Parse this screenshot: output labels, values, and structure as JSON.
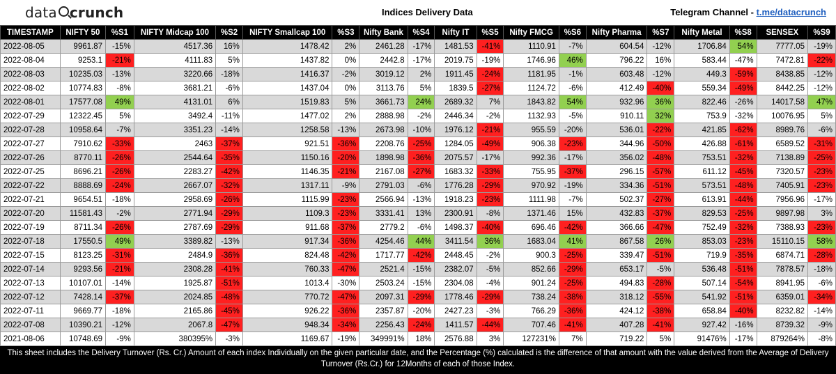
{
  "header": {
    "logo_left": "data",
    "logo_right": "crunch",
    "title": "Indices Delivery Data",
    "telegram_label": "Telegram Channel - ",
    "telegram_link": "t.me/datacrunch"
  },
  "columns": [
    "TIMESTAMP",
    "NIFTY 50",
    "%S1",
    "NIFTY Midcap 100",
    "%S2",
    "NIFTY Smallcap 100",
    "%S3",
    "Nifty Bank",
    "%S4",
    "Nifty IT",
    "%S5",
    "Nifty FMCG",
    "%S6",
    "Nifty Pharma",
    "%S7",
    "Nifty Metal",
    "%S8",
    "SENSEX",
    "%S9"
  ],
  "rows": [
    [
      "2022-08-05",
      "9961.87",
      "-15%",
      "4517.36",
      "16%",
      "1478.42",
      "2%",
      "2461.28",
      "-17%",
      "1481.53",
      "-41%",
      "1110.91",
      "-7%",
      "604.54",
      "-12%",
      "1706.84",
      "54%",
      "7777.05",
      "-19%"
    ],
    [
      "2022-08-04",
      "9253.1",
      "-21%",
      "4111.83",
      "5%",
      "1437.82",
      "0%",
      "2442.8",
      "-17%",
      "2019.75",
      "-19%",
      "1746.96",
      "46%",
      "796.22",
      "16%",
      "583.44",
      "-47%",
      "7472.81",
      "-22%"
    ],
    [
      "2022-08-03",
      "10235.03",
      "-13%",
      "3220.66",
      "-18%",
      "1416.37",
      "-2%",
      "3019.12",
      "2%",
      "1911.45",
      "-24%",
      "1181.95",
      "-1%",
      "603.48",
      "-12%",
      "449.3",
      "-59%",
      "8438.85",
      "-12%"
    ],
    [
      "2022-08-02",
      "10774.83",
      "-8%",
      "3681.21",
      "-6%",
      "1437.04",
      "0%",
      "3113.76",
      "5%",
      "1839.5",
      "-27%",
      "1124.72",
      "-6%",
      "412.49",
      "-40%",
      "559.34",
      "-49%",
      "8442.25",
      "-12%"
    ],
    [
      "2022-08-01",
      "17577.08",
      "49%",
      "4131.01",
      "6%",
      "1519.83",
      "5%",
      "3661.73",
      "24%",
      "2689.32",
      "7%",
      "1843.82",
      "54%",
      "932.96",
      "36%",
      "822.46",
      "-26%",
      "14017.58",
      "47%"
    ],
    [
      "2022-07-29",
      "12322.45",
      "5%",
      "3492.4",
      "-11%",
      "1477.02",
      "2%",
      "2888.98",
      "-2%",
      "2446.34",
      "-2%",
      "1132.93",
      "-5%",
      "910.11",
      "32%",
      "753.9",
      "-32%",
      "10076.95",
      "5%"
    ],
    [
      "2022-07-28",
      "10958.64",
      "-7%",
      "3351.23",
      "-14%",
      "1258.58",
      "-13%",
      "2673.98",
      "-10%",
      "1976.12",
      "-21%",
      "955.59",
      "-20%",
      "536.01",
      "-22%",
      "421.85",
      "-62%",
      "8989.76",
      "-6%"
    ],
    [
      "2022-07-27",
      "7910.62",
      "-33%",
      "2463",
      "-37%",
      "921.51",
      "-36%",
      "2208.76",
      "-25%",
      "1284.05",
      "-49%",
      "906.38",
      "-23%",
      "344.96",
      "-50%",
      "426.88",
      "-61%",
      "6589.52",
      "-31%"
    ],
    [
      "2022-07-26",
      "8770.11",
      "-26%",
      "2544.64",
      "-35%",
      "1150.16",
      "-20%",
      "1898.98",
      "-36%",
      "2075.57",
      "-17%",
      "992.36",
      "-17%",
      "356.02",
      "-48%",
      "753.51",
      "-32%",
      "7138.89",
      "-25%"
    ],
    [
      "2022-07-25",
      "8696.21",
      "-26%",
      "2283.27",
      "-42%",
      "1146.35",
      "-21%",
      "2167.08",
      "-27%",
      "1683.32",
      "-33%",
      "755.95",
      "-37%",
      "296.15",
      "-57%",
      "611.12",
      "-45%",
      "7320.57",
      "-23%"
    ],
    [
      "2022-07-22",
      "8888.69",
      "-24%",
      "2667.07",
      "-32%",
      "1317.11",
      "-9%",
      "2791.03",
      "-6%",
      "1776.28",
      "-29%",
      "970.92",
      "-19%",
      "334.36",
      "-51%",
      "573.51",
      "-48%",
      "7405.91",
      "-23%"
    ],
    [
      "2022-07-21",
      "9654.51",
      "-18%",
      "2958.69",
      "-26%",
      "1115.99",
      "-23%",
      "2566.94",
      "-13%",
      "1918.23",
      "-23%",
      "1111.98",
      "-7%",
      "502.37",
      "-27%",
      "613.91",
      "-44%",
      "7956.96",
      "-17%"
    ],
    [
      "2022-07-20",
      "11581.43",
      "-2%",
      "2771.94",
      "-29%",
      "1109.3",
      "-23%",
      "3331.41",
      "13%",
      "2300.91",
      "-8%",
      "1371.46",
      "15%",
      "432.83",
      "-37%",
      "829.53",
      "-25%",
      "9897.98",
      "3%"
    ],
    [
      "2022-07-19",
      "8711.34",
      "-26%",
      "2787.69",
      "-29%",
      "911.68",
      "-37%",
      "2779.2",
      "-6%",
      "1498.37",
      "-40%",
      "696.46",
      "-42%",
      "366.66",
      "-47%",
      "752.49",
      "-32%",
      "7388.93",
      "-23%"
    ],
    [
      "2022-07-18",
      "17550.5",
      "49%",
      "3389.82",
      "-13%",
      "917.34",
      "-36%",
      "4254.46",
      "44%",
      "3411.54",
      "36%",
      "1683.04",
      "41%",
      "867.58",
      "26%",
      "853.03",
      "-23%",
      "15110.15",
      "58%"
    ],
    [
      "2022-07-15",
      "8123.25",
      "-31%",
      "2484.9",
      "-36%",
      "824.48",
      "-42%",
      "1717.77",
      "-42%",
      "2448.45",
      "-2%",
      "900.3",
      "-25%",
      "339.47",
      "-51%",
      "719.9",
      "-35%",
      "6874.71",
      "-28%"
    ],
    [
      "2022-07-14",
      "9293.56",
      "-21%",
      "2308.28",
      "-41%",
      "760.33",
      "-47%",
      "2521.4",
      "-15%",
      "2382.07",
      "-5%",
      "852.66",
      "-29%",
      "653.17",
      "-5%",
      "536.48",
      "-51%",
      "7878.57",
      "-18%"
    ],
    [
      "2022-07-13",
      "10107.01",
      "-14%",
      "1925.87",
      "-51%",
      "1013.4",
      "-30%",
      "2503.24",
      "-15%",
      "2304.08",
      "-4%",
      "901.24",
      "-25%",
      "494.83",
      "-28%",
      "507.14",
      "-54%",
      "8941.95",
      "-6%"
    ],
    [
      "2022-07-12",
      "7428.14",
      "-37%",
      "2024.85",
      "-48%",
      "770.72",
      "-47%",
      "2097.31",
      "-29%",
      "1778.46",
      "-29%",
      "738.24",
      "-38%",
      "318.12",
      "-55%",
      "541.92",
      "-51%",
      "6359.01",
      "-34%"
    ],
    [
      "2022-07-11",
      "9669.77",
      "-18%",
      "2165.86",
      "-45%",
      "926.22",
      "-36%",
      "2357.87",
      "-20%",
      "2427.23",
      "-3%",
      "766.29",
      "-36%",
      "424.12",
      "-38%",
      "658.84",
      "-40%",
      "8232.82",
      "-14%"
    ],
    [
      "2022-07-08",
      "10390.21",
      "-12%",
      "2067.8",
      "-47%",
      "948.34",
      "-34%",
      "2256.43",
      "-24%",
      "1411.57",
      "-44%",
      "707.46",
      "-41%",
      "407.28",
      "-41%",
      "927.42",
      "-16%",
      "8739.32",
      "-9%"
    ],
    [
      "2021-08-06",
      "10748.69",
      "-9%",
      "380395%",
      "-3%",
      "1169.67",
      "-19%",
      "349991%",
      "18%",
      "2576.88",
      "3%",
      "127231%",
      "7%",
      "719.22",
      "5%",
      "91476%",
      "-17%",
      "879264%",
      "-8%"
    ]
  ],
  "highlights": {
    "red": [
      [
        1,
        2
      ],
      [
        0,
        10
      ],
      [
        1,
        18
      ],
      [
        2,
        10
      ],
      [
        2,
        16
      ],
      [
        3,
        10
      ],
      [
        3,
        14
      ],
      [
        3,
        16
      ],
      [
        6,
        10
      ],
      [
        6,
        14
      ],
      [
        6,
        16
      ],
      [
        7,
        2
      ],
      [
        7,
        4
      ],
      [
        7,
        6
      ],
      [
        7,
        8
      ],
      [
        7,
        10
      ],
      [
        7,
        12
      ],
      [
        7,
        14
      ],
      [
        7,
        16
      ],
      [
        7,
        18
      ],
      [
        8,
        2
      ],
      [
        8,
        4
      ],
      [
        8,
        6
      ],
      [
        8,
        8
      ],
      [
        8,
        14
      ],
      [
        8,
        16
      ],
      [
        8,
        18
      ],
      [
        9,
        2
      ],
      [
        9,
        4
      ],
      [
        9,
        6
      ],
      [
        9,
        8
      ],
      [
        9,
        10
      ],
      [
        9,
        12
      ],
      [
        9,
        14
      ],
      [
        9,
        16
      ],
      [
        9,
        18
      ],
      [
        10,
        2
      ],
      [
        10,
        4
      ],
      [
        10,
        10
      ],
      [
        10,
        14
      ],
      [
        10,
        16
      ],
      [
        10,
        18
      ],
      [
        11,
        4
      ],
      [
        11,
        6
      ],
      [
        11,
        10
      ],
      [
        11,
        14
      ],
      [
        11,
        16
      ],
      [
        12,
        4
      ],
      [
        12,
        6
      ],
      [
        12,
        14
      ],
      [
        12,
        16
      ],
      [
        13,
        2
      ],
      [
        13,
        4
      ],
      [
        13,
        6
      ],
      [
        13,
        10
      ],
      [
        13,
        12
      ],
      [
        13,
        14
      ],
      [
        13,
        16
      ],
      [
        13,
        18
      ],
      [
        14,
        6
      ],
      [
        14,
        16
      ],
      [
        15,
        2
      ],
      [
        15,
        4
      ],
      [
        15,
        6
      ],
      [
        15,
        8
      ],
      [
        15,
        12
      ],
      [
        15,
        14
      ],
      [
        15,
        16
      ],
      [
        15,
        18
      ],
      [
        16,
        2
      ],
      [
        16,
        4
      ],
      [
        16,
        6
      ],
      [
        16,
        12
      ],
      [
        16,
        16
      ],
      [
        17,
        4
      ],
      [
        17,
        12
      ],
      [
        17,
        14
      ],
      [
        17,
        16
      ],
      [
        18,
        2
      ],
      [
        18,
        4
      ],
      [
        18,
        6
      ],
      [
        18,
        8
      ],
      [
        18,
        10
      ],
      [
        18,
        12
      ],
      [
        18,
        14
      ],
      [
        18,
        16
      ],
      [
        18,
        18
      ],
      [
        19,
        4
      ],
      [
        19,
        6
      ],
      [
        19,
        12
      ],
      [
        19,
        14
      ],
      [
        19,
        16
      ],
      [
        20,
        4
      ],
      [
        20,
        6
      ],
      [
        20,
        8
      ],
      [
        20,
        10
      ],
      [
        20,
        12
      ],
      [
        20,
        14
      ]
    ],
    "green": [
      [
        0,
        16
      ],
      [
        1,
        12
      ],
      [
        4,
        2
      ],
      [
        4,
        8
      ],
      [
        4,
        12
      ],
      [
        4,
        14
      ],
      [
        4,
        18
      ],
      [
        5,
        14
      ],
      [
        14,
        2
      ],
      [
        14,
        8
      ],
      [
        14,
        10
      ],
      [
        14,
        12
      ],
      [
        14,
        14
      ],
      [
        14,
        18
      ]
    ]
  },
  "footer": {
    "text": "This sheet includes the Delivery Turnover (Rs. Cr.)  Amount of each index Individually on the given particular date, and the Percentage (%) calculated is the difference of that amount with the value derived from the Average of Delivery Turnover (Rs.Cr.) for 12Months of each of those Index."
  }
}
